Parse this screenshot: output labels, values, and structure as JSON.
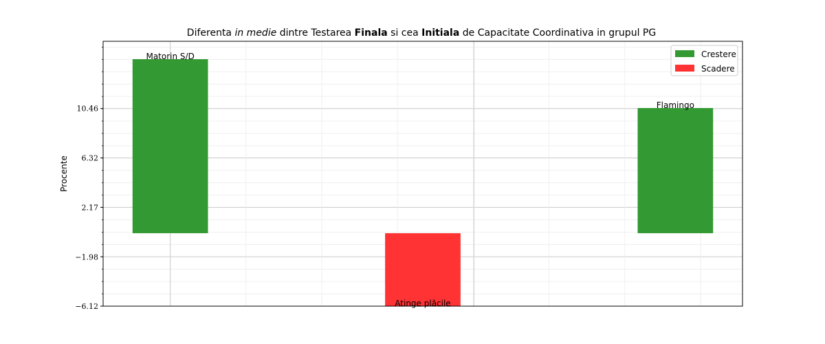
{
  "chart_data": {
    "type": "bar",
    "title_parts": [
      {
        "text": "Diferenta ",
        "style": "normal"
      },
      {
        "text": "in medie",
        "style": "italic"
      },
      {
        "text": " dintre Testarea ",
        "style": "normal"
      },
      {
        "text": "Finala",
        "style": "bold"
      },
      {
        "text": " si cea ",
        "style": "normal"
      },
      {
        "text": "Initiala",
        "style": "bold"
      },
      {
        "text": " de Capacitate Coordinativa in grupul PG",
        "style": "normal"
      }
    ],
    "ylabel": "Procente",
    "ylim": [
      -6.12,
      16.1
    ],
    "yticks": [
      -6.12,
      -1.98,
      2.17,
      6.32,
      10.46
    ],
    "ytick_labels": [
      "−6.12",
      "−1.98",
      "2.17",
      "6.32",
      "10.46"
    ],
    "categories": [
      "Matorin S/D",
      "Atinge plăcile",
      "Flamingo"
    ],
    "values": [
      14.6,
      -6.12,
      10.5
    ],
    "bar_status": [
      "Crestere",
      "Scadere",
      "Crestere"
    ],
    "colors": {
      "Crestere": "#339933",
      "Scadere": "#ff3333"
    },
    "legend": {
      "placement": "top-right",
      "entries": [
        {
          "label": "Crestere",
          "color": "#339933"
        },
        {
          "label": "Scadere",
          "color": "#ff3333"
        }
      ]
    },
    "grid": true
  }
}
